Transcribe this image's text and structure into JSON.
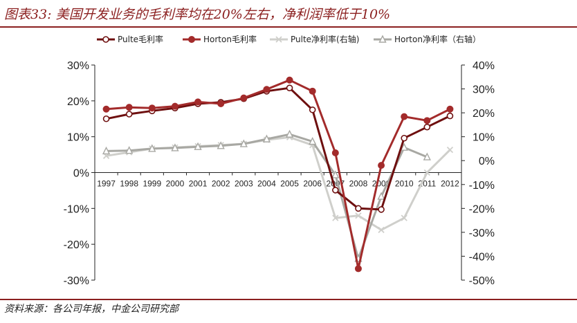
{
  "figure": {
    "title": "图表33: 美国开发业务的毛利率均在20%左右，净利润率低于10%",
    "source": "资料来源：各公司年报，中金公司研究部"
  },
  "chart_data": {
    "type": "line",
    "categories": [
      "1997",
      "1998",
      "1999",
      "2000",
      "2001",
      "2002",
      "2003",
      "2004",
      "2005",
      "2006",
      "2007",
      "2008",
      "2009",
      "2010",
      "2011",
      "2012"
    ],
    "left_axis": {
      "ylim": [
        -30,
        30
      ],
      "ticks": [
        "30%",
        "20%",
        "10%",
        "0%",
        "-10%",
        "-20%",
        "-30%"
      ]
    },
    "right_axis": {
      "ylim": [
        -50,
        40
      ],
      "ticks": [
        "40%",
        "30%",
        "20%",
        "10%",
        "0%",
        "-10%",
        "-20%",
        "-30%",
        "-40%",
        "-50%"
      ]
    },
    "legend_position": "top",
    "series": [
      {
        "name": "Pulte毛利率",
        "axis": "left",
        "color": "#6e0f0f",
        "marker": "circle-open",
        "values": [
          15,
          16.3,
          17.2,
          18,
          19.2,
          19.6,
          20.6,
          22.7,
          23.6,
          17.5,
          -4.9,
          -10,
          -10.3,
          9.6,
          12.7,
          15.8
        ]
      },
      {
        "name": "Horton毛利率",
        "axis": "left",
        "color": "#a32b2b",
        "marker": "circle-filled",
        "values": [
          17.7,
          18.2,
          18,
          18.5,
          19.7,
          19.2,
          20.8,
          23.2,
          25.8,
          22.7,
          5.5,
          -26.8,
          2,
          15.6,
          14.5,
          17.7
        ]
      },
      {
        "name": "Pulte净利率(右轴)",
        "axis": "right",
        "color": "#cfcfcb",
        "marker": "x",
        "values": [
          2,
          3.5,
          5,
          5.5,
          6,
          6.5,
          7,
          8.7,
          9.8,
          6.5,
          -24,
          -23,
          -29,
          -24,
          -5,
          4.5
        ]
      },
      {
        "name": "Horton净利率（右轴）",
        "axis": "right",
        "color": "#a8a8a3",
        "marker": "triangle-open",
        "values": [
          4,
          4.2,
          5,
          5.3,
          5.8,
          6.2,
          7,
          9,
          11,
          8,
          -6,
          -41,
          -15,
          5.5,
          1.5,
          null
        ]
      }
    ]
  }
}
